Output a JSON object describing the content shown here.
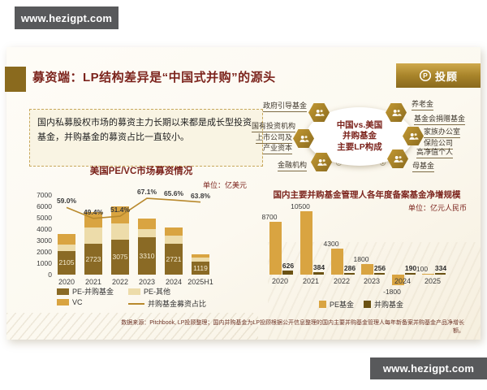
{
  "watermark": {
    "text": "www.hezigpt.com"
  },
  "slide": {
    "title": "募资端：LP结构差异是“中国式并购”的源头",
    "logo_text": "投顾",
    "intro": "国内私募股权市场的募资主力长期以来都是成长型投资基金，并购基金的募资占比一直较小。",
    "footnote": "数据来源：Pitchbook, LP投顾整理；国内并购基金为LP投顾根据公开信息整理的国内主要并购基金管理人每年新备案并购基金产品净增长额。"
  },
  "colors": {
    "maroon_title": "#7c241d",
    "gold_dark": "#8a6a25",
    "gold": "#d9a441",
    "cream": "#eddcaa",
    "brown_dark": "#6b5213",
    "trend_line": "#b8892d",
    "banner_gray": "#58595b",
    "hex_gold": "#b08a28"
  },
  "diagram": {
    "center": [
      "中国vs.美国",
      "并购基金",
      "主要LP构成"
    ],
    "left_labels": [
      [
        "政府引导基金"
      ],
      [
        "国有投资机构"
      ],
      [
        "上市公司及",
        "产业资本"
      ],
      [
        "金融机构"
      ]
    ],
    "right_labels": [
      [
        "养老金"
      ],
      [
        "基金会捐赠基金"
      ],
      [
        "家族办公室"
      ],
      [
        "保险公司"
      ],
      [
        "高净值个人"
      ],
      [
        "母基金"
      ]
    ],
    "hex_icon": "people-icon"
  },
  "chart_data": [
    {
      "type": "bar",
      "title": "美国PE/VC市场募资情况",
      "unit": "单位：亿美元",
      "categories": [
        "2020",
        "2021",
        "2022",
        "2023",
        "2024",
        "2025H1"
      ],
      "series": [
        {
          "name": "PE-并购基金",
          "color": "#8a6a25",
          "values": [
            2105,
            2723,
            3075,
            3310,
            2721,
            1119
          ],
          "labeled": true
        },
        {
          "name": "PE-其他",
          "color": "#eddcaa",
          "values": [
            560,
            1430,
            1430,
            680,
            700,
            380
          ]
        },
        {
          "name": "VC",
          "color": "#d9a441",
          "values": [
            900,
            1360,
            1480,
            940,
            730,
            255
          ]
        }
      ],
      "line_series": {
        "name": "并购基金募资占比",
        "color": "#b8892d",
        "values_pct": [
          59.0,
          49.4,
          51.4,
          67.1,
          65.6,
          63.8
        ],
        "labels": [
          "59.0%",
          "49.4%",
          "51.4%",
          "67.1%",
          "65.6%",
          "63.8%"
        ]
      },
      "ylim": [
        0,
        7000
      ],
      "yticks": [
        0,
        1000,
        2000,
        3000,
        4000,
        5000,
        6000,
        7000
      ],
      "line_axis_max": 70,
      "grid": false,
      "legend_position": "bottom"
    },
    {
      "type": "bar",
      "title": "国内主要并购基金管理人各年度备案基金净增规模",
      "unit": "单位：亿元人民币",
      "categories": [
        "2020",
        "2021",
        "2022",
        "2023",
        "2024",
        "2025"
      ],
      "series": [
        {
          "name": "PE基金",
          "color": "#d9a441",
          "values": [
            8700,
            10500,
            4300,
            1800,
            -1800,
            100
          ]
        },
        {
          "name": "并购基金",
          "color": "#6b5213",
          "values": [
            626,
            384,
            286,
            256,
            190,
            334
          ]
        }
      ],
      "ylim": [
        -2000,
        11000
      ],
      "grid": false,
      "legend_position": "bottom"
    }
  ]
}
